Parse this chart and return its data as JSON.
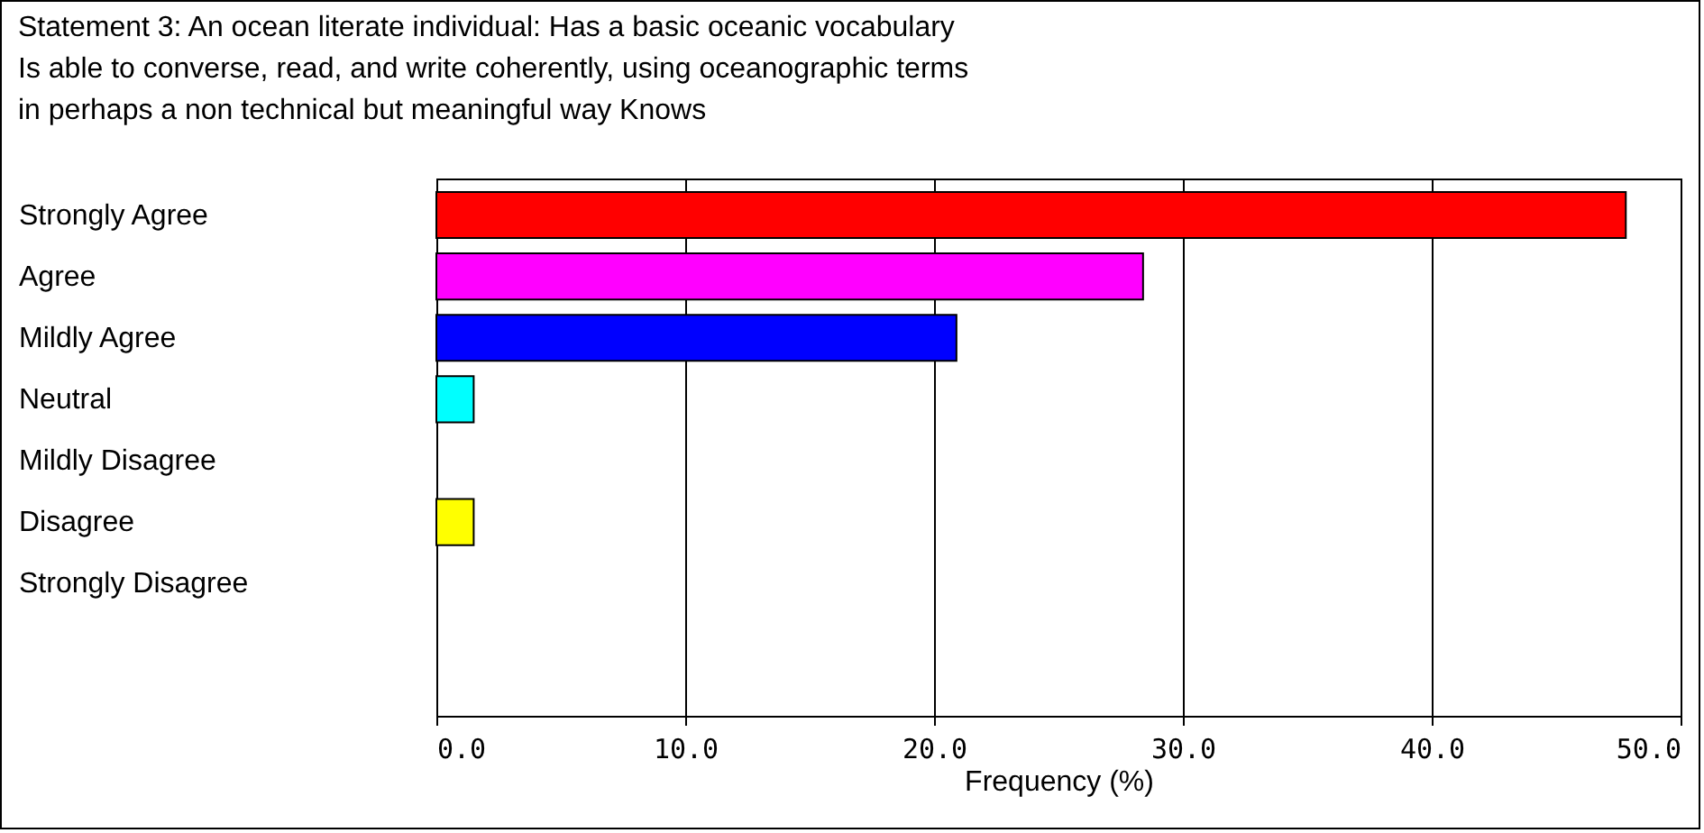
{
  "chart_data": {
    "type": "bar",
    "orientation": "horizontal",
    "title": [
      "Statement 3: An ocean literate individual: Has a basic oceanic vocabulary",
      "Is able to converse, read, and write coherently, using oceanographic terms",
      "in perhaps a non technical but meaningful way Knows"
    ],
    "categories": [
      "Strongly Agree",
      "Agree",
      "Mildly Agree",
      "Neutral",
      "Mildly Disagree",
      "Disagree",
      "Strongly Disagree"
    ],
    "values": [
      47.8,
      28.4,
      20.9,
      1.5,
      0,
      1.5,
      0
    ],
    "colors": [
      "#ff0000",
      "#ff00ff",
      "#0000ff",
      "#00ffff",
      null,
      "#ffff00",
      null
    ],
    "xlabel": "Frequency (%)",
    "xlim": [
      0,
      50
    ],
    "xticks": [
      {
        "value": 0,
        "label": "0.0"
      },
      {
        "value": 10,
        "label": "10.0"
      },
      {
        "value": 20,
        "label": "20.0"
      },
      {
        "value": 30,
        "label": "30.0"
      },
      {
        "value": 40,
        "label": "40.0"
      },
      {
        "value": 50,
        "label": "50.0"
      }
    ],
    "grid": "x"
  }
}
